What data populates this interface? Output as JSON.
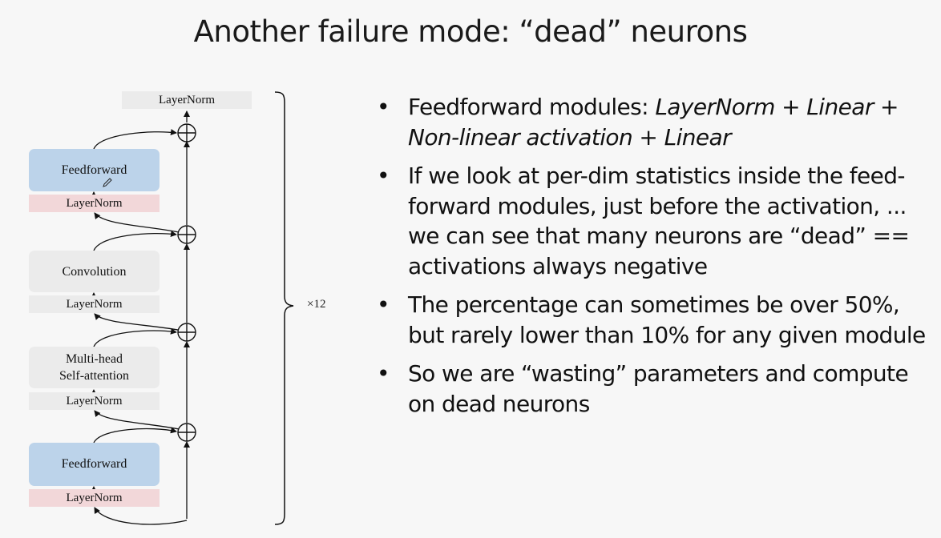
{
  "slide": {
    "title": "Another failure mode: “dead” neurons"
  },
  "diagram": {
    "top_layernorm": "LayerNorm",
    "ff_top": "Feedforward",
    "ff_top_norm": "LayerNorm",
    "conv": "Convolution",
    "conv_norm": "LayerNorm",
    "mhsa_line1": "Multi-head",
    "mhsa_line2": "Self-attention",
    "mhsa_norm": "LayerNorm",
    "ff_bottom": "Feedforward",
    "ff_bottom_norm": "LayerNorm",
    "repeat": "×12",
    "icons": [
      "plus-circle-icon",
      "pencil-icon"
    ]
  },
  "bullets": [
    {
      "lead": "Feedforward modules: ",
      "italic": "LayerNorm + Linear + Non-linear activation + Linear"
    },
    {
      "text": "If we look at per-dim statistics inside the feed-forward modules, just before the activation, ...  we can see that many neurons are “dead” == activations always negative"
    },
    {
      "text": "The percentage can sometimes be over 50%, but rarely lower than 10% for any given module"
    },
    {
      "text": "So we are “wasting” parameters and compute on dead neurons"
    }
  ],
  "bullet_char": "•"
}
